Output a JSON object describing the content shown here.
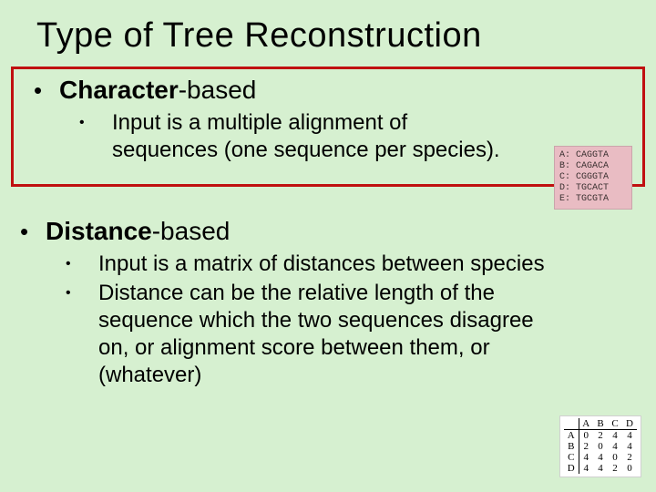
{
  "colors": {
    "background": "#d6f0d0",
    "highlight_border": "#c01010",
    "seq_bg": "#e9bcc3",
    "matrix_bg": "#ffffff",
    "text": "#000000"
  },
  "typography": {
    "title_fontsize": 38,
    "l1_fontsize": 28,
    "l2_fontsize": 24,
    "font_family": "Arial"
  },
  "title": "Type of Tree Reconstruction",
  "section1": {
    "heading_strong": "Character",
    "heading_rest": "-based",
    "highlighted": true,
    "sub": [
      "Input is a multiple alignment of sequences (one sequence per species)."
    ]
  },
  "section2": {
    "heading_strong": "Distance",
    "heading_rest": "-based",
    "highlighted": false,
    "sub": [
      "Input is a matrix of distances between species",
      "Distance can be the relative length of the sequence which the two sequences disagree on, or alignment score between them, or (whatever)"
    ]
  },
  "seq_figure": {
    "rows": [
      "A: CAGGTA",
      "B: CAGACA",
      "C: CGGGTA",
      "D: TGCACT",
      "E: TGCGTA"
    ]
  },
  "matrix_figure": {
    "columns": [
      "A",
      "B",
      "C",
      "D"
    ],
    "rows": [
      {
        "label": "A",
        "cells": [
          "0",
          "2",
          "4",
          "4"
        ]
      },
      {
        "label": "B",
        "cells": [
          "2",
          "0",
          "4",
          "4"
        ]
      },
      {
        "label": "C",
        "cells": [
          "4",
          "4",
          "0",
          "2"
        ]
      },
      {
        "label": "D",
        "cells": [
          "4",
          "4",
          "2",
          "0"
        ]
      }
    ]
  }
}
